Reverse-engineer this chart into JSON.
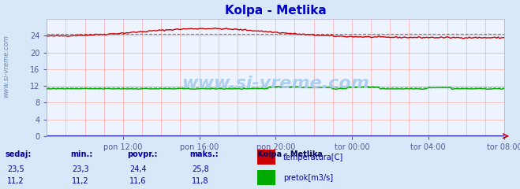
{
  "title": "Kolpa - Metlika",
  "title_color": "#0000cc",
  "bg_color": "#d8e8f8",
  "plot_bg_color": "#eef4ff",
  "grid_color": "#ffaaaa",
  "temp_color": "#cc0000",
  "flow_color": "#00aa00",
  "flow_line_color": "#0000cc",
  "temp_avg": 24.4,
  "temp_min": 23.3,
  "temp_max": 25.8,
  "temp_current": 23.5,
  "flow_avg": 11.6,
  "flow_min": 11.2,
  "flow_max": 11.8,
  "flow_current": 11.2,
  "ylim": [
    0,
    28
  ],
  "yticks": [
    0,
    4,
    8,
    12,
    16,
    20,
    24
  ],
  "tick_label_color": "#555599",
  "watermark": "www.si-vreme.com",
  "watermark_color": "#aaccee",
  "legend_title": "Kolpa - Metlika",
  "legend_title_color": "#000066",
  "label_temp": "temperatura[C]",
  "label_flow": "pretok[m3/s]",
  "table_headers": [
    "sedaj:",
    "min.:",
    "povpr.:",
    "maks.:"
  ],
  "table_color": "#0000aa",
  "n_points": 289
}
